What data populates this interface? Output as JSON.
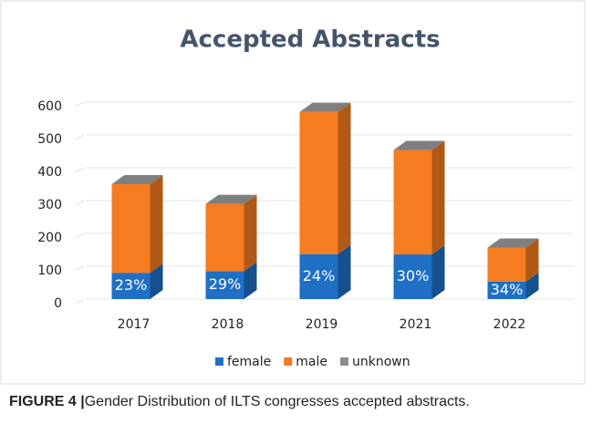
{
  "chart_data": {
    "type": "bar",
    "stacked": true,
    "title": "Accepted Abstracts",
    "categories": [
      "2017",
      "2018",
      "2019",
      "2021",
      "2022"
    ],
    "series": [
      {
        "name": "female",
        "color": "#1f6fc5",
        "values": [
          80,
          85,
          137,
          136,
          53
        ]
      },
      {
        "name": "male",
        "color": "#f57c20",
        "values": [
          270,
          205,
          433,
          318,
          104
        ]
      },
      {
        "name": "unknown",
        "color": "#8c8c8c",
        "values": [
          0,
          0,
          0,
          0,
          0
        ]
      }
    ],
    "female_share": [
      {
        "value": 23,
        "label": "23%"
      },
      {
        "value": 29,
        "label": "29%"
      },
      {
        "value": 24,
        "label": "24%"
      },
      {
        "value": 30,
        "label": "30%"
      },
      {
        "value": 34,
        "label": "34%"
      }
    ],
    "ylim": [
      0,
      600
    ],
    "yticks": [
      0,
      100,
      200,
      300,
      400,
      500,
      600
    ],
    "grid": true,
    "legend": "bottom"
  },
  "caption": {
    "label": "FIGURE 4 |",
    "text": "Gender Distribution of ILTS congresses accepted abstracts."
  }
}
